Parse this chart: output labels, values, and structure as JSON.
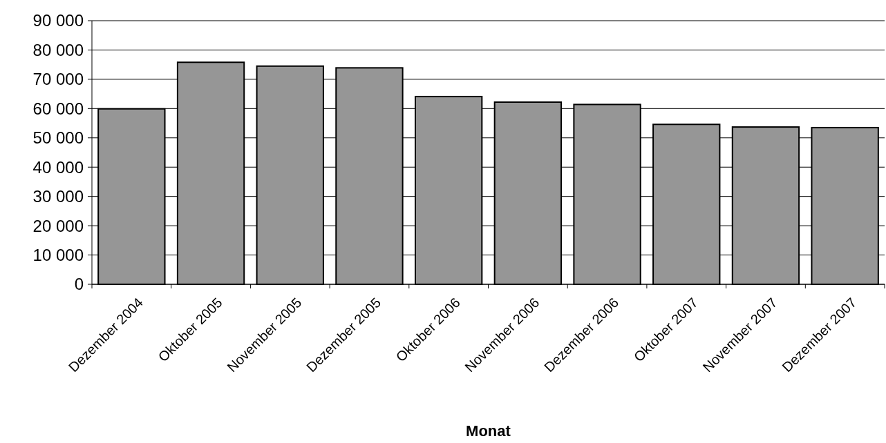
{
  "chart_data": {
    "type": "bar",
    "xlabel": "Monat",
    "categories": [
      "Dezember 2004",
      "Oktober 2005",
      "November 2005",
      "Dezember 2005",
      "Oktober 2006",
      "November 2006",
      "Dezember 2006",
      "Oktober 2007",
      "November 2007",
      "Dezember 2007"
    ],
    "values": [
      59900,
      75800,
      74500,
      73900,
      64100,
      62200,
      61400,
      54600,
      53700,
      53500
    ],
    "color": "#969696",
    "ylim": [
      0,
      90000
    ],
    "yticks": [
      0,
      {
        "value": 10000,
        "label": "10 000"
      },
      {
        "value": 20000,
        "label": "20 000"
      },
      {
        "value": 30000,
        "label": "30 000"
      },
      {
        "value": 40000,
        "label": "40 000"
      },
      {
        "value": 50000,
        "label": "50 000"
      },
      {
        "value": 60000,
        "label": "60 000"
      },
      {
        "value": 70000,
        "label": "70 000"
      },
      {
        "value": 80000,
        "label": "80 000"
      },
      {
        "value": 90000,
        "label": "90 000"
      }
    ],
    "grid": "y"
  }
}
